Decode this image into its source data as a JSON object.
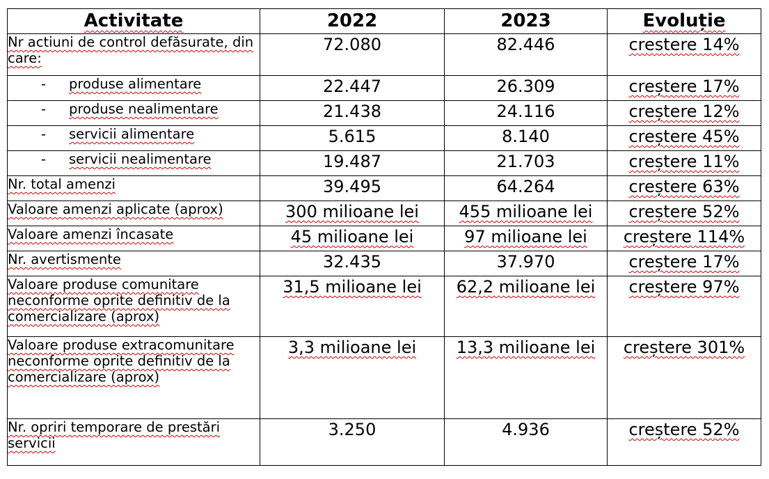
{
  "table": {
    "headers": [
      "Activitate",
      "2022",
      "2023",
      "Evoluție"
    ],
    "rows": [
      {
        "activity": "Nr actiuni de control defăsurate, din care:",
        "y2022": "72.080",
        "y2023": "82.446",
        "evolution": "crestere 14%"
      },
      {
        "prefix": "-",
        "activity": "produse alimentare",
        "y2022": "22.447",
        "y2023": "26.309",
        "evolution": "creștere 17%"
      },
      {
        "prefix": "-",
        "activity": "produse nealimentare",
        "y2022": "21.438",
        "y2023": "24.116",
        "evolution": "creștere 12%"
      },
      {
        "prefix": "-",
        "activity": "servicii alimentare",
        "y2022": "5.615",
        "y2023": "8.140",
        "evolution": "creștere 45%"
      },
      {
        "prefix": "-",
        "activity": "servicii nealimentare",
        "y2022": "19.487",
        "y2023": "21.703",
        "evolution": "creștere 11%"
      },
      {
        "activity": "Nr. total amenzi",
        "y2022": "39.495",
        "y2023": "64.264",
        "evolution": "creștere 63%"
      },
      {
        "activity": "Valoare amenzi aplicate (aprox)",
        "y2022": "300 milioane lei",
        "y2023": "455 milioane lei",
        "evolution": "creștere 52%"
      },
      {
        "activity": "Valoare amenzi încasate",
        "y2022": "45 milioane lei",
        "y2023": "97 milioane lei",
        "evolution": "creștere 114%"
      },
      {
        "activity": "Nr. avertismente",
        "y2022": "32.435",
        "y2023": "37.970",
        "evolution": "creștere 17%"
      },
      {
        "activity": "Valoare produse comunitare neconforme oprite definitiv de la comercializare (aprox)",
        "y2022": "31,5 milioane lei",
        "y2023": "62,2 milioane lei",
        "evolution": "creștere 97%"
      },
      {
        "activity": "Valoare produse extracomunitare neconforme oprite definitiv de la comercializare (aprox)",
        "y2022": "3,3 milioane lei",
        "y2023": "13,3 milioane lei",
        "evolution": "creștere 301%"
      },
      {
        "activity": "Nr. opriri temporare de prestări servicii",
        "y2022": "3.250",
        "y2023": "4.936",
        "evolution": "creștere 52%"
      }
    ]
  }
}
